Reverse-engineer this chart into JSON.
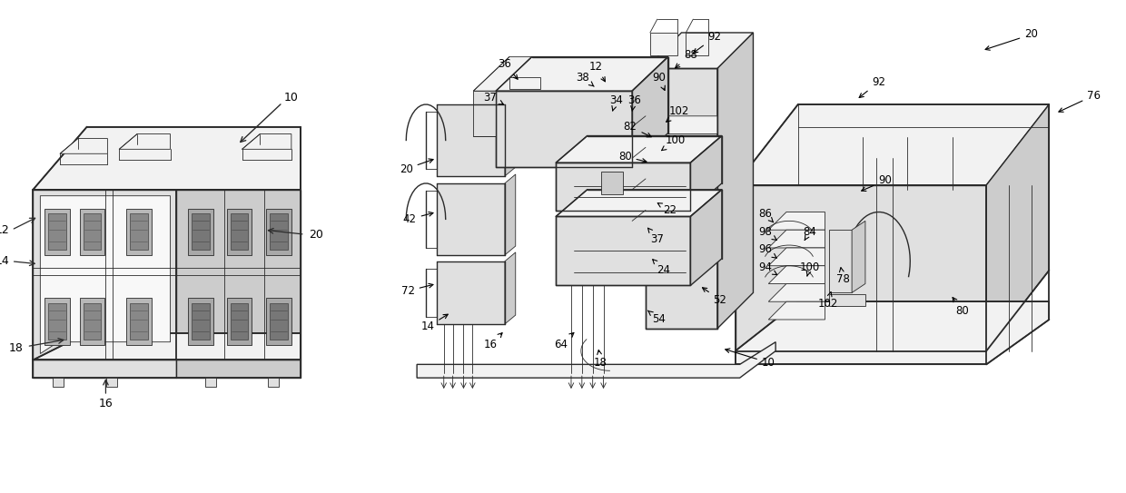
{
  "background_color": "#ffffff",
  "line_color": "#2a2a2a",
  "line_width": 1.0,
  "figsize": [
    12.4,
    5.43
  ],
  "dpi": 100,
  "light_gray": "#e8e8e8",
  "mid_gray": "#d0d0d0",
  "dark_gray": "#b8b8b8",
  "face_light": "#f2f2f2",
  "face_mid": "#e0e0e0",
  "face_dark": "#cccccc"
}
